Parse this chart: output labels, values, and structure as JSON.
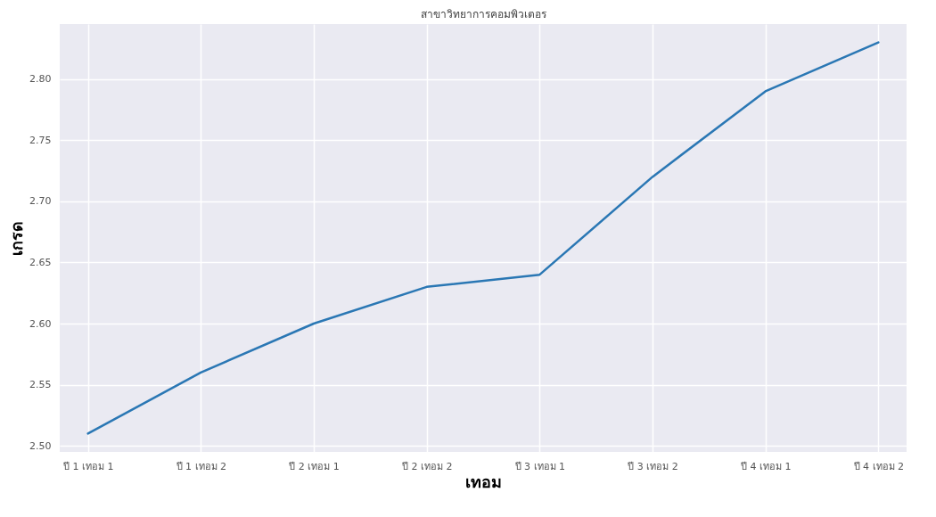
{
  "chart_data": {
    "type": "line",
    "title": "สาขาวิทยาการคอมพิวเตอร",
    "xlabel": "เทอม",
    "ylabel": "เกรด",
    "categories": [
      "ปี 1 เทอม 1",
      "ปี 1 เทอม 2",
      "ปี 2 เทอม 1",
      "ปี 2 เทอม 2",
      "ปี 3 เทอม 1",
      "ปี 3 เทอม 2",
      "ปี 4 เทอม 1",
      "ปี 4 เทอม 2"
    ],
    "series": [
      {
        "color": "#2a77b4",
        "values": [
          2.51,
          2.56,
          2.6,
          2.63,
          2.64,
          2.72,
          2.79,
          2.83
        ]
      }
    ],
    "ylim": [
      2.495,
      2.845
    ],
    "yticks": [
      {
        "value": 2.5,
        "label": "2.50"
      },
      {
        "value": 2.55,
        "label": "2.55"
      },
      {
        "value": 2.6,
        "label": "2.60"
      },
      {
        "value": 2.65,
        "label": "2.65"
      },
      {
        "value": 2.7,
        "label": "2.70"
      },
      {
        "value": 2.75,
        "label": "2.75"
      },
      {
        "value": 2.8,
        "label": "2.80"
      }
    ],
    "grid": true,
    "marker": "none",
    "line_style": "solid"
  }
}
